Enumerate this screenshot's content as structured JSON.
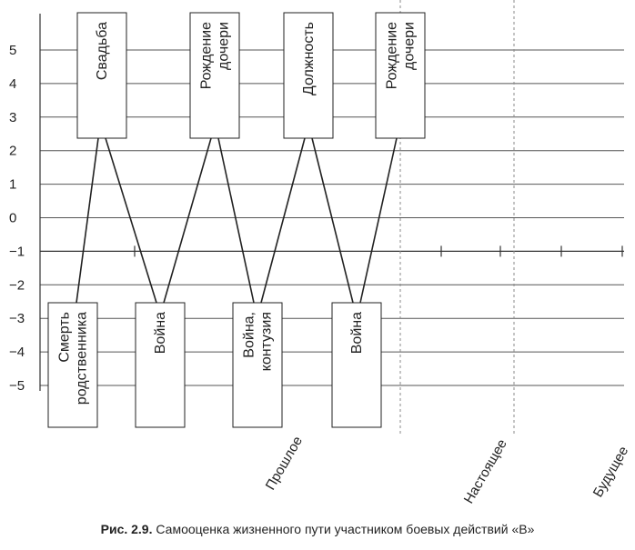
{
  "caption": {
    "number": "Рис. 2.9.",
    "text": "Самооценка жизненного пути участником боевых действий «В»"
  },
  "chart_data": {
    "type": "line",
    "title": "Рис. 2.9. Самооценка жизненного пути участником боевых действий «В»",
    "xlabel": "",
    "ylabel": "",
    "ylim": [
      -5,
      5
    ],
    "yticks": [
      5,
      4,
      3,
      2,
      1,
      0,
      -1,
      -2,
      -3,
      -4,
      -5
    ],
    "grid": true,
    "events": [
      {
        "label": "Смерть родственника",
        "lines": [
          "Смерть",
          "родственника"
        ],
        "value": -5
      },
      {
        "label": "Свадьба",
        "lines": [
          "Свадьба"
        ],
        "value": 5
      },
      {
        "label": "Война",
        "lines": [
          "Война"
        ],
        "value": -5
      },
      {
        "label": "Рождение дочери",
        "lines": [
          "Рождение",
          "дочери"
        ],
        "value": 5
      },
      {
        "label": "Война, контузия",
        "lines": [
          "Война,",
          "контузия"
        ],
        "value": -5
      },
      {
        "label": "Должность",
        "lines": [
          "Должность"
        ],
        "value": 5
      },
      {
        "label": "Война",
        "lines": [
          "Война"
        ],
        "value": -5
      },
      {
        "label": "Рождение дочери",
        "lines": [
          "Рождение",
          "дочери"
        ],
        "value": 5
      }
    ],
    "periods": [
      "Прошлое",
      "Настоящее",
      "Будущее"
    ]
  }
}
